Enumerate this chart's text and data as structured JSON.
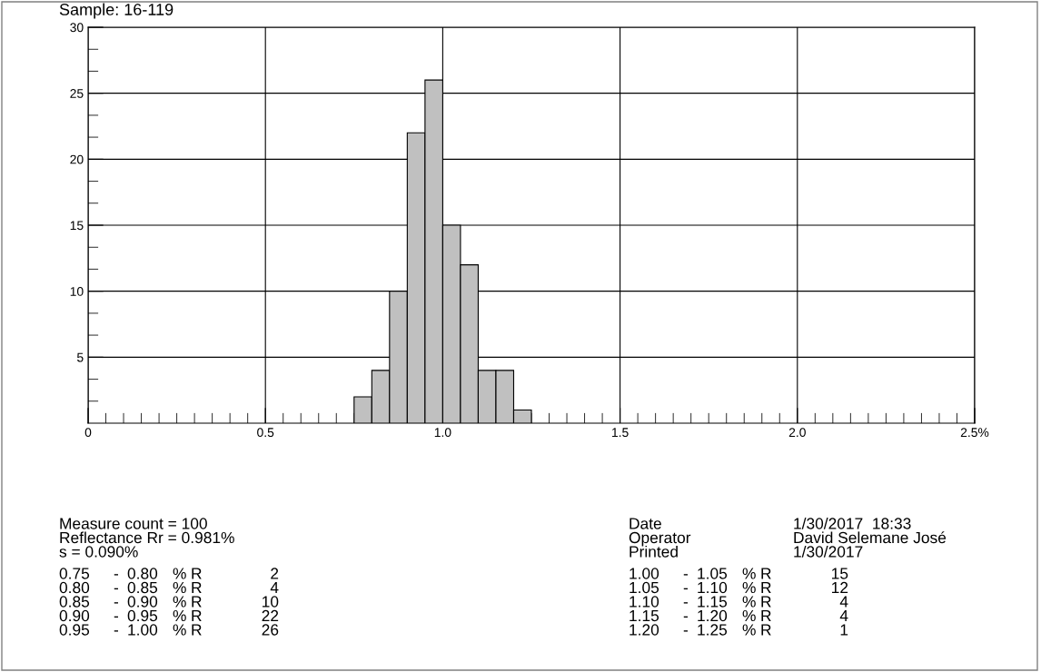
{
  "chart_data": {
    "type": "histogram",
    "title": "Sample: 16-119",
    "bins": [
      0.75,
      0.8,
      0.85,
      0.9,
      0.95,
      1.0,
      1.05,
      1.1,
      1.15,
      1.2,
      1.25
    ],
    "values": [
      2,
      4,
      10,
      22,
      26,
      15,
      12,
      4,
      4,
      1
    ],
    "color": "#c0c0c0",
    "xlim": [
      0,
      2.5
    ],
    "xticks": [
      0,
      0.5,
      {
        "value": 1.0,
        "label": "1.0"
      },
      1.5,
      {
        "value": 2.0,
        "label": "2.0"
      },
      {
        "value": 2.5,
        "label": "2.5%"
      },
      {
        "value": 0.05,
        "label": null
      },
      {
        "value": 0.1,
        "label": null
      },
      {
        "value": 0.15,
        "label": null
      },
      {
        "value": 0.2,
        "label": null
      },
      {
        "value": 0.25,
        "label": null
      },
      {
        "value": 0.3,
        "label": null
      },
      {
        "value": 0.35,
        "label": null
      },
      {
        "value": 0.4,
        "label": null
      },
      {
        "value": 0.45,
        "label": null
      },
      {
        "value": 0.55,
        "label": null
      },
      {
        "value": 0.6,
        "label": null
      },
      {
        "value": 0.65,
        "label": null
      },
      {
        "value": 0.7,
        "label": null
      },
      {
        "value": 0.75,
        "label": null
      },
      {
        "value": 0.8,
        "label": null
      },
      {
        "value": 0.85,
        "label": null
      },
      {
        "value": 0.9,
        "label": null
      },
      {
        "value": 0.95,
        "label": null
      },
      {
        "value": 1.05,
        "label": null
      },
      {
        "value": 1.1,
        "label": null
      },
      {
        "value": 1.15,
        "label": null
      },
      {
        "value": 1.2,
        "label": null
      },
      {
        "value": 1.25,
        "label": null
      },
      {
        "value": 1.3,
        "label": null
      },
      {
        "value": 1.35,
        "label": null
      },
      {
        "value": 1.4,
        "label": null
      },
      {
        "value": 1.45,
        "label": null
      },
      {
        "value": 1.55,
        "label": null
      },
      {
        "value": 1.6,
        "label": null
      },
      {
        "value": 1.65,
        "label": null
      },
      {
        "value": 1.7,
        "label": null
      },
      {
        "value": 1.75,
        "label": null
      },
      {
        "value": 1.8,
        "label": null
      },
      {
        "value": 1.85,
        "label": null
      },
      {
        "value": 1.9,
        "label": null
      },
      {
        "value": 1.95,
        "label": null
      },
      {
        "value": 2.05,
        "label": null
      },
      {
        "value": 2.1,
        "label": null
      },
      {
        "value": 2.15,
        "label": null
      },
      {
        "value": 2.2,
        "label": null
      },
      {
        "value": 2.25,
        "label": null
      },
      {
        "value": 2.3,
        "label": null
      },
      {
        "value": 2.35,
        "label": null
      },
      {
        "value": 2.4,
        "label": null
      },
      {
        "value": 2.45,
        "label": null
      }
    ],
    "ylim": [
      0,
      30
    ],
    "yticks": [
      5,
      10,
      15,
      20,
      25,
      30,
      {
        "value": 1.67,
        "label": null
      },
      {
        "value": 3.33,
        "label": null
      },
      {
        "value": 6.67,
        "label": null
      },
      {
        "value": 8.33,
        "label": null
      },
      {
        "value": 11.67,
        "label": null
      },
      {
        "value": 13.33,
        "label": null
      },
      {
        "value": 16.67,
        "label": null
      },
      {
        "value": 18.33,
        "label": null
      },
      {
        "value": 21.67,
        "label": null
      },
      {
        "value": 23.33,
        "label": null
      },
      {
        "value": 26.67,
        "label": null
      },
      {
        "value": 28.33,
        "label": null
      }
    ],
    "grid": true,
    "annotations": [
      "Measure count = 100",
      "Reflectance Rr = 0.981%",
      "s = 0.090%",
      "Date",
      "Operator",
      "Printed",
      "1/30/2017  18:33",
      "David Selemane José",
      "1/30/2017",
      "0.75 - 0.80 % R 2",
      "0.80 - 0.85 % R 4",
      "0.85 - 0.90 % R 10",
      "0.90 - 0.95 % R 22",
      "0.95 - 1.00 % R 26",
      "1.00 - 1.05 % R 15",
      "1.05 - 1.10 % R 12",
      "1.10 - 1.15 % R 4",
      "1.15 - 1.20 % R 4",
      "1.20 - 1.25 % R 1"
    ]
  }
}
